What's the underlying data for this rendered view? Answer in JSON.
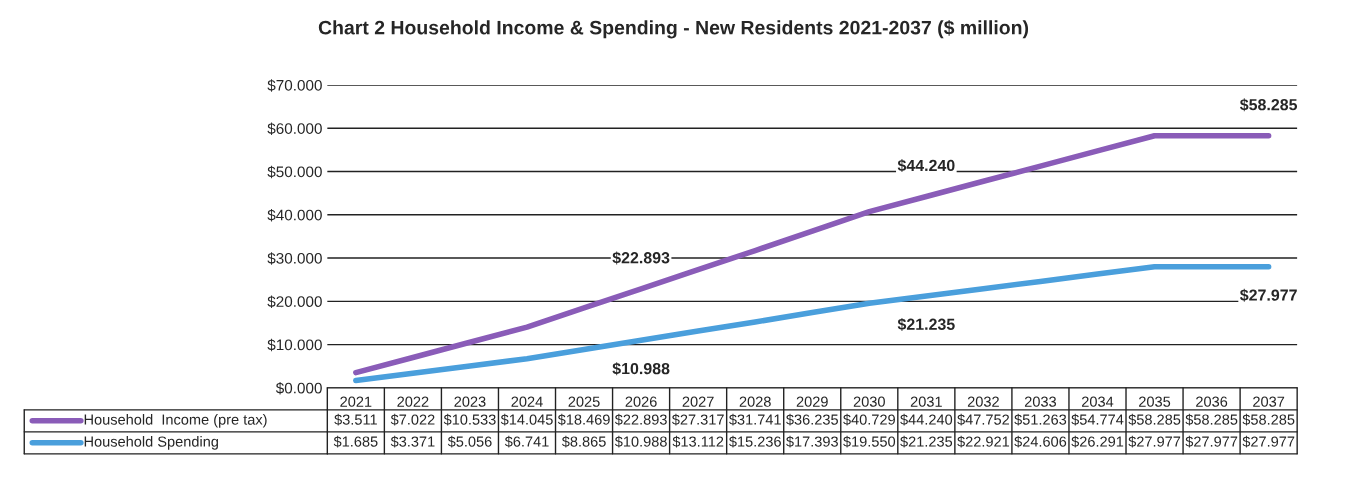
{
  "chart_data": {
    "type": "line",
    "title": "Chart 2 Household Income & Spending - New Residents 2021-2037 ($ million)",
    "categories": [
      "2021",
      "2022",
      "2023",
      "2024",
      "2025",
      "2026",
      "2027",
      "2028",
      "2029",
      "2030",
      "2031",
      "2032",
      "2033",
      "2034",
      "2035",
      "2036",
      "2037"
    ],
    "series": [
      {
        "name": "Household  Income (pre tax)",
        "color": "#8a5cb8",
        "values": [
          3.511,
          7.022,
          10.533,
          14.045,
          18.469,
          22.893,
          27.317,
          31.741,
          36.235,
          40.729,
          44.24,
          47.752,
          51.263,
          54.774,
          58.285,
          58.285,
          58.285
        ],
        "value_labels": [
          "$3.511",
          "$7.022",
          "$10.533",
          "$14.045",
          "$18.469",
          "$22.893",
          "$27.317",
          "$31.741",
          "$36.235",
          "$40.729",
          "$44.240",
          "$47.752",
          "$51.263",
          "$54.774",
          "$58.285",
          "$58.285",
          "$58.285"
        ]
      },
      {
        "name": "Household Spending",
        "color": "#4a9fdc",
        "values": [
          1.685,
          3.371,
          5.056,
          6.741,
          8.865,
          10.988,
          13.112,
          15.236,
          17.393,
          19.55,
          21.235,
          22.921,
          24.606,
          26.291,
          27.977,
          27.977,
          27.977
        ],
        "value_labels": [
          "$1.685",
          "$3.371",
          "$5.056",
          "$6.741",
          "$8.865",
          "$10.988",
          "$13.112",
          "$15.236",
          "$17.393",
          "$19.550",
          "$21.235",
          "$22.921",
          "$24.606",
          "$26.291",
          "$27.977",
          "$27.977",
          "$27.977"
        ]
      }
    ],
    "ylim": [
      0,
      70
    ],
    "yticks": [
      {
        "value": 0,
        "label": "$0.000"
      },
      {
        "value": 10,
        "label": "$10.000"
      },
      {
        "value": 20,
        "label": "$20.000"
      },
      {
        "value": 30,
        "label": "$30.000"
      },
      {
        "value": 40,
        "label": "$40.000"
      },
      {
        "value": 50,
        "label": "$50.000"
      },
      {
        "value": 60,
        "label": "$60.000"
      },
      {
        "value": 70,
        "label": "$70.000"
      }
    ],
    "annotations": [
      {
        "text": "$22.893",
        "x": "2026",
        "y": 22.893
      },
      {
        "text": "$44.240",
        "x": "2031",
        "y": 44.24
      },
      {
        "text": "$58.285",
        "x": "2037",
        "y": 58.285
      },
      {
        "text": "$10.988",
        "x": "2026",
        "y": 10.988
      },
      {
        "text": "$21.235",
        "x": "2031",
        "y": 21.235
      },
      {
        "text": "$27.977",
        "x": "2037",
        "y": 27.977
      }
    ],
    "grid": "y",
    "legend": "bottom left",
    "marker": "none",
    "line_style": "solid"
  }
}
